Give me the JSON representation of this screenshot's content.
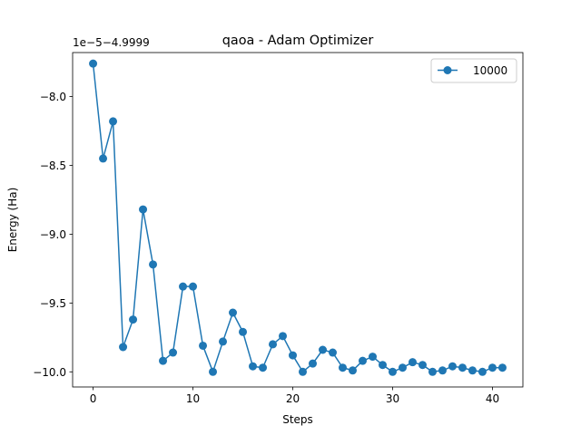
{
  "chart_data": {
    "type": "line",
    "title": "qaoa - Adam Optimizer",
    "xlabel": "Steps",
    "ylabel": "Energy (Ha)",
    "offset_label": "1e−5−4.9999",
    "xlim": [
      -2.05,
      43.05
    ],
    "ylim": [
      -10.11,
      -7.68
    ],
    "x_ticks": [
      0,
      10,
      20,
      30,
      40
    ],
    "y_ticks": [
      -10.0,
      -9.5,
      -9.0,
      -8.5,
      -8.0
    ],
    "y_tick_labels": [
      "−10.0",
      "−9.5",
      "−9.0",
      "−8.5",
      "−8.0"
    ],
    "legend_position": "upper right",
    "series": [
      {
        "name": "10000",
        "color": "#1f77b4",
        "x": [
          0,
          1,
          2,
          3,
          4,
          5,
          6,
          7,
          8,
          9,
          10,
          11,
          12,
          13,
          14,
          15,
          16,
          17,
          18,
          19,
          20,
          21,
          22,
          23,
          24,
          25,
          26,
          27,
          28,
          29,
          30,
          31,
          32,
          33,
          34,
          35,
          36,
          37,
          38,
          39,
          40,
          41
        ],
        "y": [
          -7.76,
          -8.45,
          -8.18,
          -9.82,
          -9.62,
          -8.82,
          -9.22,
          -9.92,
          -9.86,
          -9.38,
          -9.38,
          -9.81,
          -10.0,
          -9.78,
          -9.57,
          -9.71,
          -9.96,
          -9.97,
          -9.8,
          -9.74,
          -9.88,
          -10.0,
          -9.94,
          -9.84,
          -9.86,
          -9.97,
          -9.99,
          -9.92,
          -9.89,
          -9.95,
          -10.0,
          -9.97,
          -9.93,
          -9.95,
          -10.0,
          -9.99,
          -9.96,
          -9.97,
          -9.99,
          -10.0,
          -9.97,
          -9.97
        ]
      }
    ]
  }
}
